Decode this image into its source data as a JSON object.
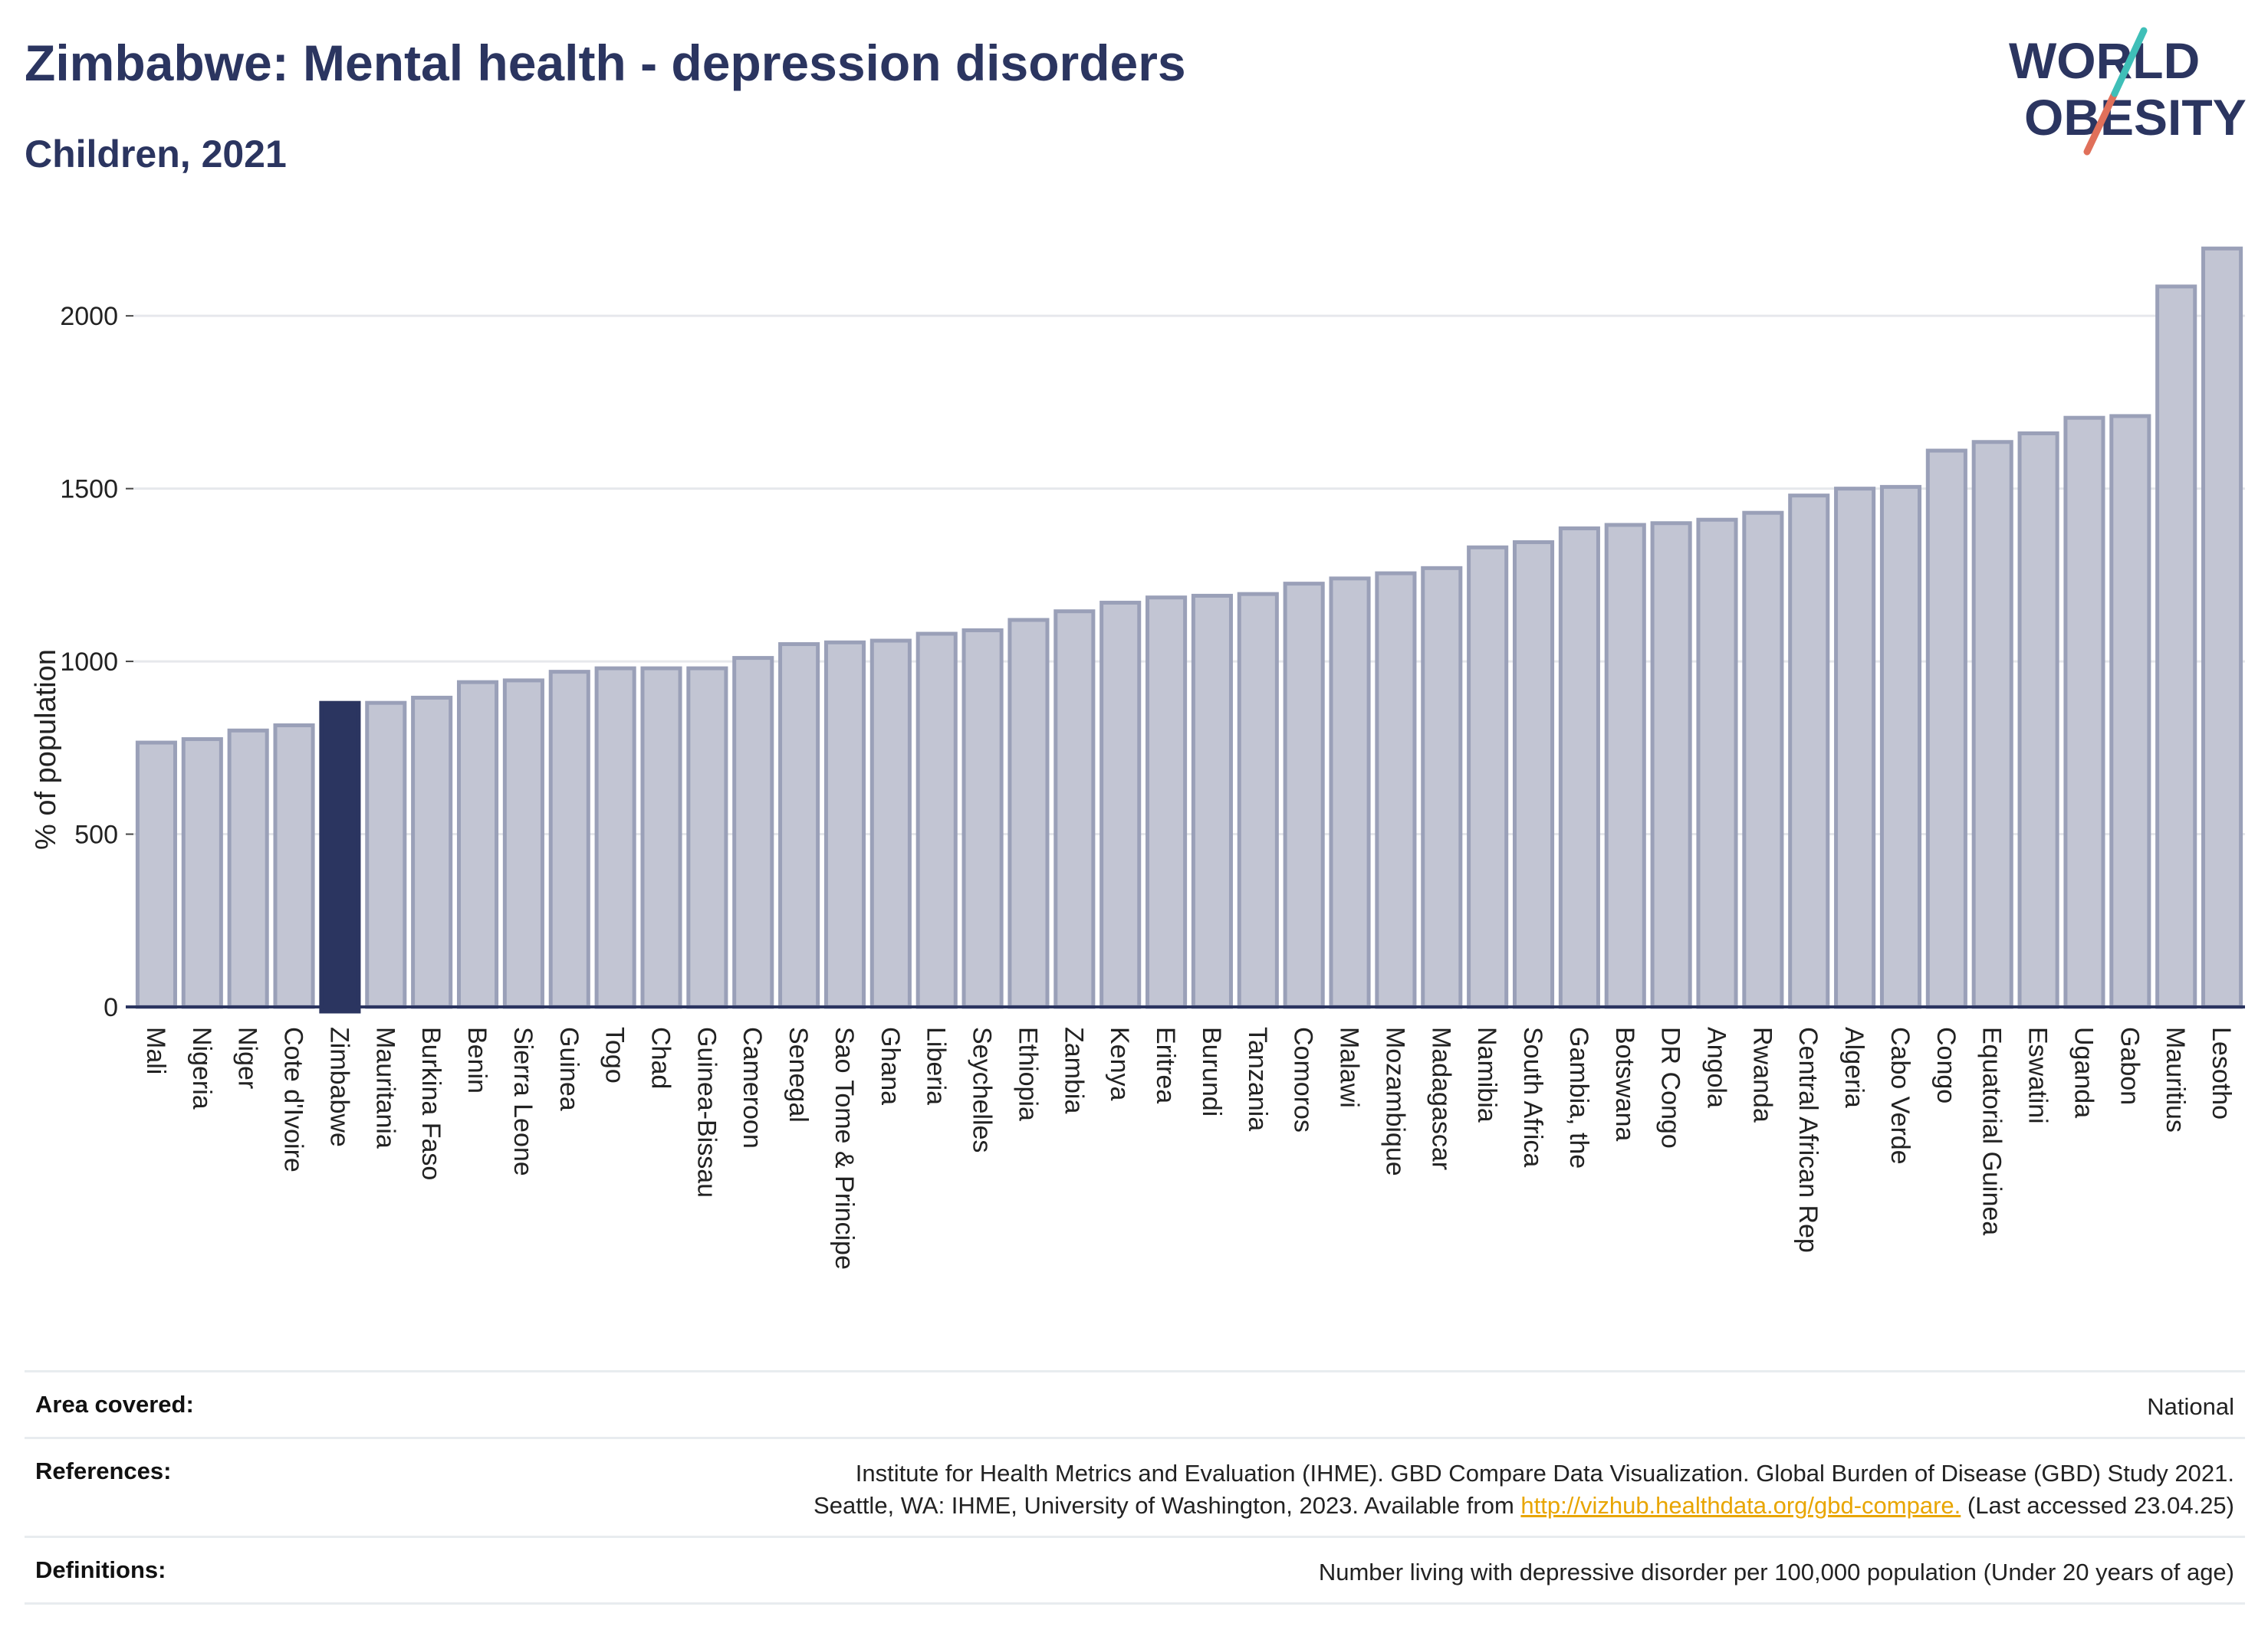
{
  "header": {
    "title": "Zimbabwe: Mental health - depression disorders",
    "subtitle": "Children, 2021"
  },
  "logo": {
    "line1": "WORLD",
    "line2": "OBESITY"
  },
  "chart_data": {
    "type": "bar",
    "ylabel": "% of population",
    "ylim": [
      0,
      2200
    ],
    "yticks": [
      0,
      500,
      1000,
      1500,
      2000
    ],
    "grid": true,
    "highlight": "Zimbabwe",
    "colors": {
      "bar": "#c2c5d3",
      "bar_edge": "#9aa0b8",
      "highlight": "#2b3560",
      "grid": "#e6e8ec",
      "axis": "#2b3560"
    },
    "categories": [
      "Mali",
      "Nigeria",
      "Niger",
      "Cote d'Ivoire",
      "Zimbabwe",
      "Mauritania",
      "Burkina Faso",
      "Benin",
      "Sierra Leone",
      "Guinea",
      "Togo",
      "Chad",
      "Guinea-Bissau",
      "Cameroon",
      "Senegal",
      "Sao Tome & Principe",
      "Ghana",
      "Liberia",
      "Seychelles",
      "Ethiopia",
      "Zambia",
      "Kenya",
      "Eritrea",
      "Burundi",
      "Tanzania",
      "Comoros",
      "Malawi",
      "Mozambique",
      "Madagascar",
      "Namibia",
      "South Africa",
      "Gambia, the",
      "Botswana",
      "DR Congo",
      "Angola",
      "Rwanda",
      "Central African Rep",
      "Algeria",
      "Cabo Verde",
      "Congo",
      "Equatorial Guinea",
      "Eswatini",
      "Uganda",
      "Gabon",
      "Mauritius",
      "Lesotho"
    ],
    "values": [
      765,
      775,
      800,
      815,
      880,
      880,
      895,
      940,
      945,
      970,
      980,
      980,
      980,
      1010,
      1050,
      1055,
      1060,
      1080,
      1090,
      1120,
      1145,
      1170,
      1185,
      1190,
      1195,
      1225,
      1240,
      1255,
      1270,
      1330,
      1345,
      1385,
      1395,
      1400,
      1410,
      1430,
      1480,
      1500,
      1505,
      1610,
      1635,
      1660,
      1705,
      1710,
      2085,
      2195
    ]
  },
  "footer": {
    "area_label": "Area covered:",
    "area_value": "National",
    "refs_label": "References:",
    "refs_line1": "Institute for Health Metrics and Evaluation (IHME). GBD Compare Data Visualization. Global Burden of Disease (GBD) Study 2021.",
    "refs_line2_pre": "Seattle, WA: IHME, University of Washington, 2023. Available from ",
    "refs_link": "http://vizhub.healthdata.org/gbd-compare.",
    "refs_line2_post": " (Last accessed 23.04.25)",
    "defs_label": "Definitions:",
    "defs_value": "Number living with depressive disorder per 100,000 population (Under 20 years of age)"
  }
}
